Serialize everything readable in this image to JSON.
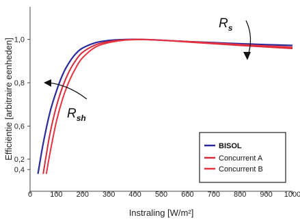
{
  "chart_data": {
    "type": "line",
    "xlabel": "Instraling [W/m²]",
    "ylabel": "Efficiëntie [arbitraire eenheden]",
    "xlim": [
      0,
      1000
    ],
    "ylim": [
      0.3,
      1.15
    ],
    "x_ticks": [
      "0",
      "100",
      "200",
      "300",
      "400",
      "500",
      "600",
      "700",
      "800",
      "900",
      "1000"
    ],
    "y_ticks": [
      "0,2",
      "0,4",
      "0,6",
      "0,8",
      "1,0"
    ],
    "y_tick_values": [
      0.2,
      0.4,
      0.6,
      0.8,
      1.0
    ],
    "grid": false,
    "legend_position": "bottom-right",
    "series": [
      {
        "name": "BISOL",
        "color": "#2a2a9c",
        "x": [
          30,
          50,
          75,
          100,
          125,
          150,
          175,
          200,
          250,
          300,
          350,
          400,
          450,
          500,
          600,
          700,
          800,
          900,
          1000
        ],
        "y": [
          0.38,
          0.52,
          0.66,
          0.76,
          0.84,
          0.895,
          0.935,
          0.96,
          0.985,
          0.995,
          0.999,
          1.0,
          0.999,
          0.996,
          0.99,
          0.985,
          0.98,
          0.976,
          0.972
        ]
      },
      {
        "name": "Concurrent A",
        "color": "#d62a3a",
        "x": [
          50,
          75,
          100,
          125,
          150,
          175,
          200,
          250,
          300,
          350,
          400,
          450,
          500,
          600,
          700,
          800,
          900,
          1000
        ],
        "y": [
          0.38,
          0.56,
          0.69,
          0.785,
          0.855,
          0.905,
          0.94,
          0.975,
          0.99,
          0.997,
          1.0,
          0.999,
          0.996,
          0.988,
          0.98,
          0.972,
          0.965,
          0.958
        ]
      },
      {
        "name": "Concurrent B",
        "color": "#e8323f",
        "x": [
          62,
          75,
          100,
          125,
          150,
          175,
          200,
          250,
          300,
          350,
          400,
          450,
          500,
          600,
          700,
          800,
          900,
          1000
        ],
        "y": [
          0.38,
          0.47,
          0.62,
          0.73,
          0.81,
          0.87,
          0.915,
          0.965,
          0.985,
          0.995,
          0.999,
          0.999,
          0.996,
          0.99,
          0.983,
          0.976,
          0.97,
          0.964
        ]
      }
    ],
    "annotations": [
      {
        "name": "Rs",
        "main": "R",
        "sub": "s",
        "x": 820,
        "y": 1.1
      },
      {
        "name": "Rsh",
        "main": "R",
        "sub": "sh",
        "x": 60,
        "y": 0.44
      }
    ]
  }
}
